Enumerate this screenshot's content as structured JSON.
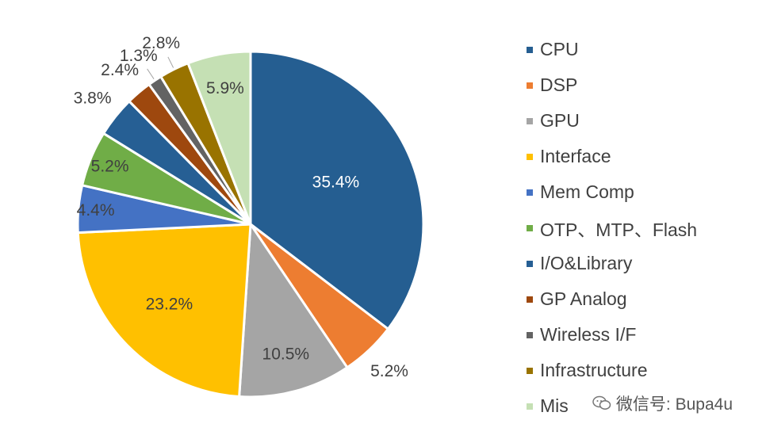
{
  "chart_data": {
    "type": "pie",
    "categories": [
      "CPU",
      "DSP",
      "GPU",
      "Interface",
      "Mem Comp",
      "OTP、MTP、Flash",
      "I/O&Library",
      "GP Analog",
      "Wireless I/F",
      "Infrastructure",
      "Misc"
    ],
    "values": [
      35.4,
      5.2,
      10.5,
      23.2,
      4.4,
      5.2,
      3.8,
      2.4,
      1.3,
      2.8,
      5.9
    ],
    "labels": [
      "35.4%",
      "5.2%",
      "10.5%",
      "23.2%",
      "4.4%",
      "5.2%",
      "3.8%",
      "2.4%",
      "1.3%",
      "2.8%",
      "5.9%"
    ],
    "colors": [
      "#255e91",
      "#ed7d31",
      "#a5a5a5",
      "#ffc000",
      "#4472c4",
      "#70ad47",
      "#265f94",
      "#9e480e",
      "#636363",
      "#997300",
      "#c5e0b4"
    ],
    "legend_position": "right",
    "start_angle": "12 o'clock, clockwise"
  },
  "legend": {
    "items": [
      {
        "label": "CPU",
        "color": "#255e91"
      },
      {
        "label": "DSP",
        "color": "#ed7d31"
      },
      {
        "label": "GPU",
        "color": "#a5a5a5"
      },
      {
        "label": "Interface",
        "color": "#ffc000"
      },
      {
        "label": "Mem Comp",
        "color": "#4472c4"
      },
      {
        "label": "OTP、MTP、Flash",
        "color": "#70ad47"
      },
      {
        "label": "I/O&Library",
        "color": "#265f94"
      },
      {
        "label": "GP Analog",
        "color": "#9e480e"
      },
      {
        "label": "Wireless I/F",
        "color": "#636363"
      },
      {
        "label": "Infrastructure",
        "color": "#997300"
      },
      {
        "label": "Mis",
        "color": "#c5e0b4"
      }
    ]
  },
  "watermark": {
    "text": "微信号: Bupa4u",
    "icon": "wechat-icon"
  }
}
